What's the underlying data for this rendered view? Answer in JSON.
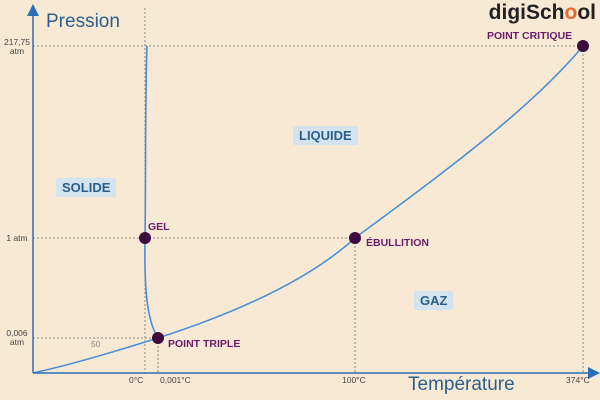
{
  "brand": {
    "prefix": "digiSch",
    "accent": "o",
    "suffix": "ol"
  },
  "axes": {
    "y_title": "Pression",
    "x_title": "Température",
    "y_ticks": [
      "217,75 atm",
      "1 atm",
      "0,006 atm"
    ],
    "x_ticks": [
      "0°C",
      "0,001°C",
      "100°C",
      "374°C"
    ],
    "minor_tick": "50"
  },
  "regions": {
    "solid": "SOLIDE",
    "liquid": "LIQUIDE",
    "gas": "GAZ"
  },
  "points": {
    "critical": "POINT CRITIQUE",
    "freeze": "GEL",
    "boiling": "ÉBULLITION",
    "triple": "POINT TRIPLE"
  },
  "colors": {
    "background": "#f8e9d4",
    "axis": "#2a6fb5",
    "curve": "#4a90d9",
    "point": "#3d0a3d",
    "point_label": "#6a1b6a",
    "region_fill": "#d5e3ee",
    "region_text": "#2a5f8d"
  }
}
